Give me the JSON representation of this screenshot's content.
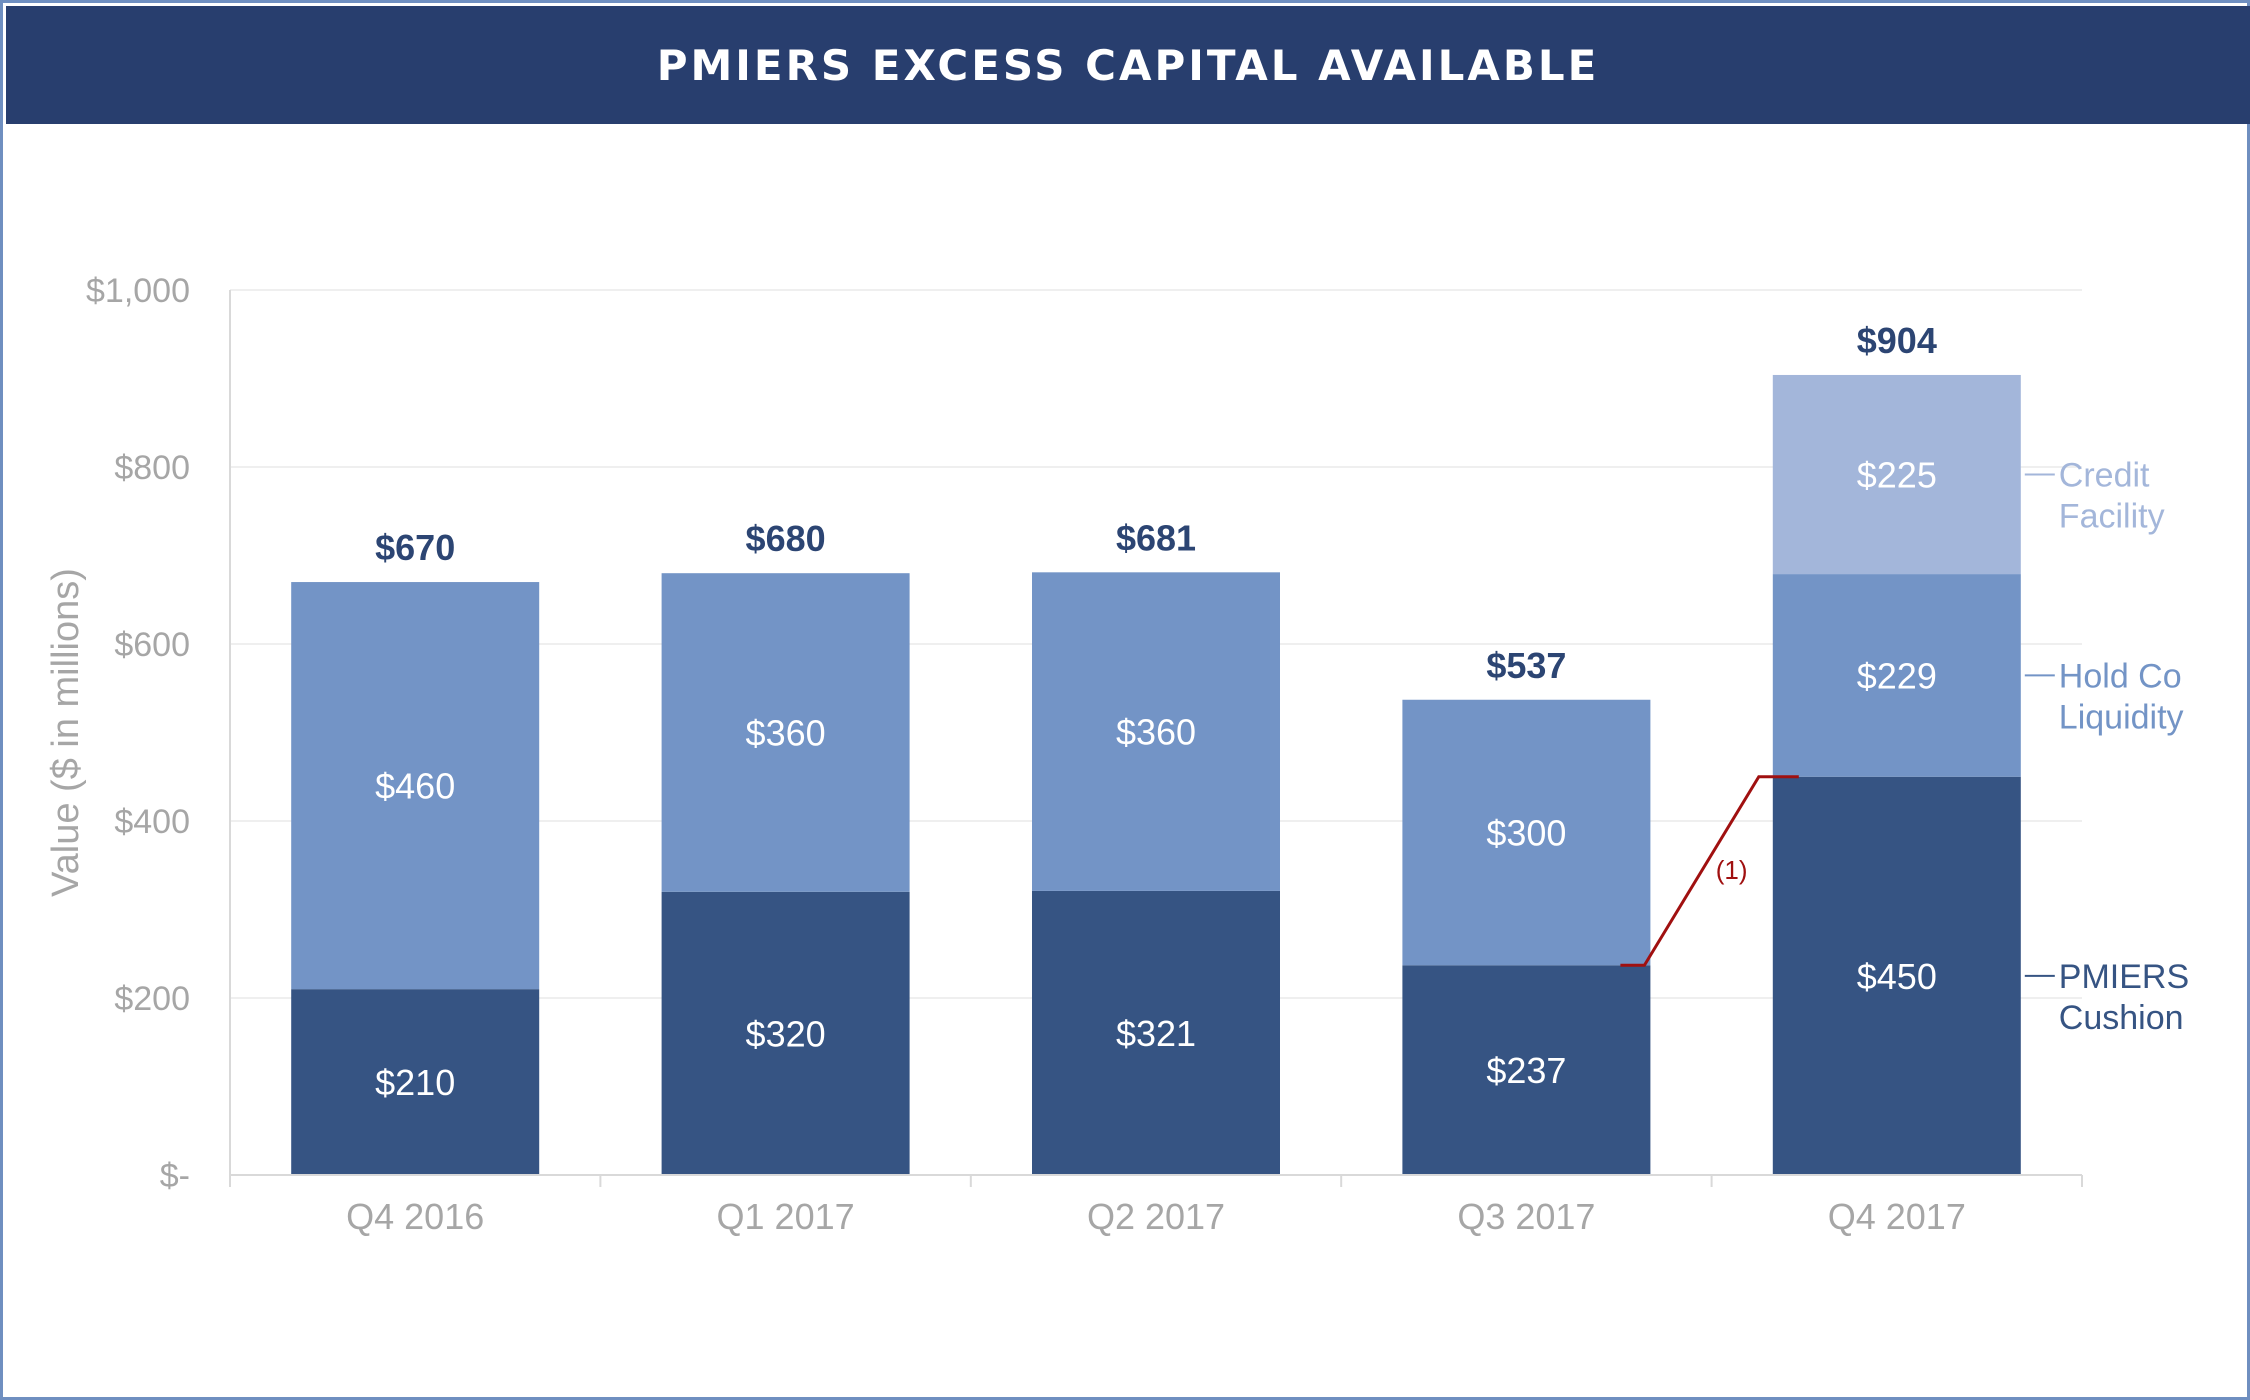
{
  "header": {
    "title": "PMIERS EXCESS CAPITAL AVAILABLE"
  },
  "colors": {
    "header_bg": "#283e6e",
    "pmiers_cushion": "#365483",
    "hold_co_liquidity": "#7394c6",
    "credit_facility": "#a3b6da",
    "total_label": "#2c4573",
    "axis_text": "#a6a6a6",
    "annotation": "#a01010"
  },
  "chart_data": {
    "type": "bar",
    "stacked": true,
    "title": "",
    "xlabel": "",
    "ylabel": "Value ($ in millions)",
    "ylim": [
      0,
      1000
    ],
    "yticks": [
      0,
      200,
      400,
      600,
      800,
      1000
    ],
    "ytick_labels": [
      "$-",
      "$200",
      "$400",
      "$600",
      "$800",
      "$1,000"
    ],
    "grid": true,
    "legend_position": "right",
    "categories": [
      "Q4 2016",
      "Q1 2017",
      "Q2 2017",
      "Q3 2017",
      "Q4 2017"
    ],
    "series": [
      {
        "name": "PMIERS Cushion",
        "legend_lines": [
          "PMIERS",
          "Cushion"
        ],
        "values": [
          210,
          320,
          321,
          237,
          450
        ],
        "labels": [
          "$210",
          "$320",
          "$321",
          "$237",
          "$450"
        ]
      },
      {
        "name": "Hold Co Liquidity",
        "legend_lines": [
          "Hold Co",
          "Liquidity"
        ],
        "values": [
          460,
          360,
          360,
          300,
          229
        ],
        "labels": [
          "$460",
          "$360",
          "$360",
          "$300",
          "$229"
        ]
      },
      {
        "name": "Credit Facility",
        "legend_lines": [
          "Credit",
          "Facility"
        ],
        "values": [
          0,
          0,
          0,
          0,
          225
        ],
        "labels": [
          "",
          "",
          "",
          "",
          "$225"
        ]
      }
    ],
    "totals": [
      670,
      680,
      681,
      537,
      904
    ],
    "total_labels": [
      "$670",
      "$680",
      "$681",
      "$537",
      "$904"
    ],
    "annotation": {
      "text": "(1)"
    }
  }
}
